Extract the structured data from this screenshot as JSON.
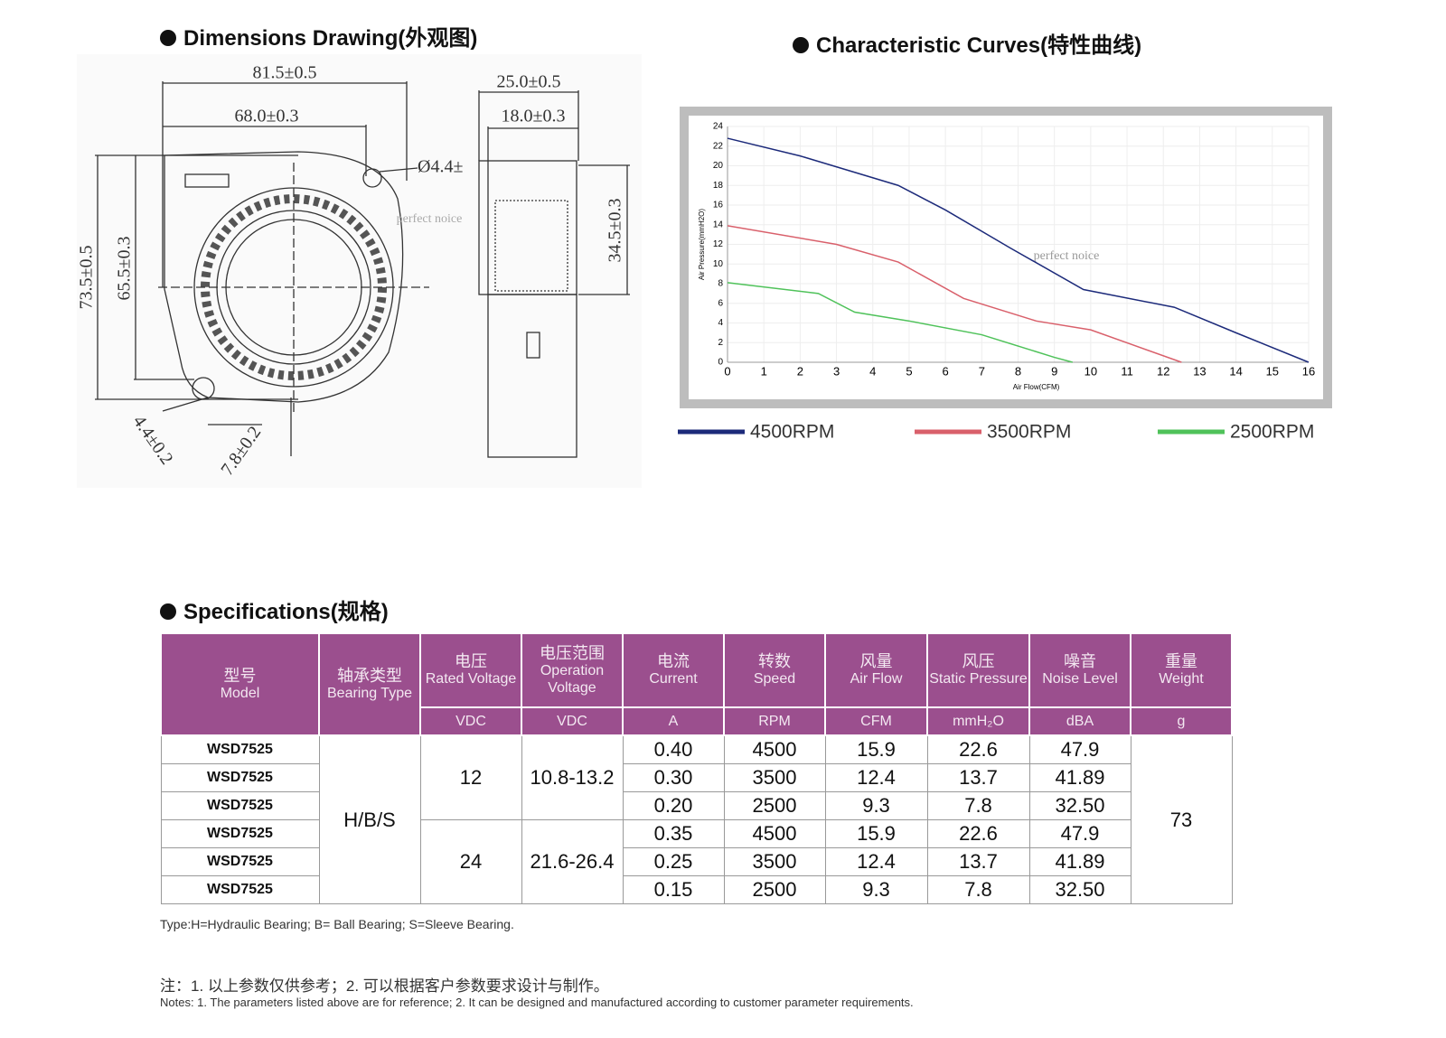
{
  "dimensions": {
    "title": "Dimensions Drawing(外观图)",
    "labels": {
      "width_outer": "81.5±0.5",
      "width_inner": "68.0±0.3",
      "hole": "Ø4.4±",
      "height_outer": "73.5±0.5",
      "height_inner": "65.5±0.3",
      "tab_a": "4.4±0.2",
      "tab_b": "7.8±0.2",
      "depth_outer": "25.0±0.5",
      "depth_inner": "18.0±0.3",
      "outlet": "34.5±0.3"
    },
    "watermark": "perfect noice"
  },
  "chart_data": {
    "type": "line",
    "title": "Characteristic Curves(特性曲线)",
    "x_label": "Air Flow(CFM)",
    "y_label": "Air Pressure(mmH2O)",
    "annotation": "perfect noice",
    "xlim": [
      0,
      16
    ],
    "xticks": [
      0,
      1,
      2,
      3,
      4,
      5,
      6,
      7,
      8,
      9,
      10,
      11,
      12,
      13,
      14,
      15,
      16
    ],
    "ylim": [
      0,
      24
    ],
    "yticks": [
      0,
      2,
      4,
      6,
      8,
      10,
      12,
      14,
      16,
      18,
      20,
      22,
      24
    ],
    "grid": true,
    "series": [
      {
        "name": "4500RPM",
        "color": "#1c2a7a",
        "x": [
          0,
          2,
          4.7,
          6,
          7.8,
          9.8,
          12.3,
          14,
          16
        ],
        "values": [
          22.8,
          21,
          18,
          15.5,
          11.6,
          7.4,
          5.6,
          3,
          0
        ]
      },
      {
        "name": "3500RPM",
        "color": "#d9606b",
        "x": [
          0,
          3,
          4.7,
          6.5,
          8.5,
          10,
          12.5
        ],
        "values": [
          13.9,
          12,
          10.2,
          6.5,
          4.2,
          3.3,
          0
        ]
      },
      {
        "name": "2500RPM",
        "color": "#4fc25a",
        "x": [
          0,
          2.5,
          3.5,
          5,
          7,
          9,
          9.5
        ],
        "values": [
          8.1,
          7,
          5.1,
          4.2,
          2.8,
          0.5,
          0
        ]
      }
    ]
  },
  "specs": {
    "title": "Specifications(规格)",
    "header": [
      {
        "zh": "型号",
        "en": "Model"
      },
      {
        "zh": "轴承类型",
        "en": "Bearing Type"
      },
      {
        "zh": "电压",
        "en": "Rated Voltage",
        "unit": "VDC"
      },
      {
        "zh": "电压范围",
        "en": "Operation Voltage",
        "unit": "VDC"
      },
      {
        "zh": "电流",
        "en": "Current",
        "unit": "A"
      },
      {
        "zh": "转数",
        "en": "Speed",
        "unit": "RPM"
      },
      {
        "zh": "风量",
        "en": "Air Flow",
        "unit": "CFM"
      },
      {
        "zh": "风压",
        "en": "Static Pressure",
        "unit": "mmH₂O"
      },
      {
        "zh": "噪音",
        "en": "Noise Level",
        "unit": "dBA"
      },
      {
        "zh": "重量",
        "en": "Weight",
        "unit": "g"
      }
    ],
    "models": [
      "WSD7525",
      "WSD7525",
      "WSD7525",
      "WSD7525",
      "WSD7525",
      "WSD7525"
    ],
    "bearing": "H/B/S",
    "weight": "73",
    "groups": [
      {
        "voltage": "12",
        "range": "10.8-13.2",
        "rows": [
          [
            "0.40",
            "4500",
            "15.9",
            "22.6",
            "47.9"
          ],
          [
            "0.30",
            "3500",
            "12.4",
            "13.7",
            "41.89"
          ],
          [
            "0.20",
            "2500",
            "9.3",
            "7.8",
            "32.50"
          ]
        ]
      },
      {
        "voltage": "24",
        "range": "21.6-26.4",
        "rows": [
          [
            "0.35",
            "4500",
            "15.9",
            "22.6",
            "47.9"
          ],
          [
            "0.25",
            "3500",
            "12.4",
            "13.7",
            "41.89"
          ],
          [
            "0.15",
            "2500",
            "9.3",
            "7.8",
            "32.50"
          ]
        ]
      }
    ],
    "type_note": "Type:H=Hydraulic Bearing; B= Ball Bearing; S=Sleeve Bearing.",
    "notes_zh": "注：1. 以上参数仅供参考；2. 可以根据客户参数要求设计与制作。",
    "notes_en": "Notes: 1. The parameters listed above are for reference; 2. It can be designed and manufactured according to customer parameter requirements."
  }
}
